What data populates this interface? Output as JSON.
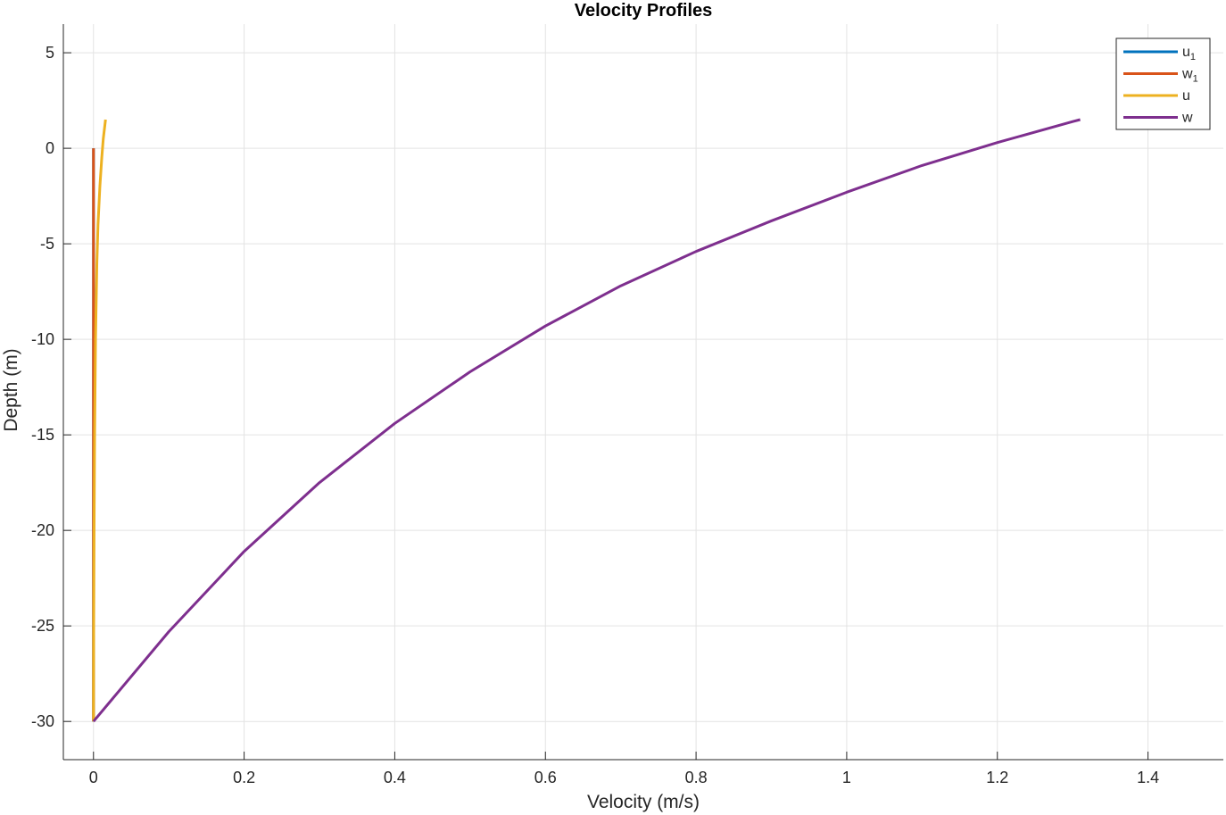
{
  "chart_data": {
    "type": "line",
    "title": "Velocity Profiles",
    "xlabel": "Velocity (m/s)",
    "ylabel": "Depth (m)",
    "xlim": [
      -0.04,
      1.5
    ],
    "ylim": [
      -32,
      6.5
    ],
    "xticks": [
      0,
      0.2,
      0.4,
      0.6,
      0.8,
      1,
      1.2,
      1.4
    ],
    "xtick_labels": [
      "0",
      "0.2",
      "0.4",
      "0.6",
      "0.8",
      "1",
      "1.2",
      "1.4"
    ],
    "yticks": [
      5,
      0,
      -5,
      -10,
      -15,
      -20,
      -25,
      -30
    ],
    "ytick_labels": [
      "5",
      "0",
      "-5",
      "-10",
      "-15",
      "-20",
      "-25",
      "-30"
    ],
    "grid": true,
    "legend_position": "top-right",
    "series": [
      {
        "name": "u",
        "name_sub": "1",
        "color": "#0072BD",
        "points": [
          [
            0,
            -30
          ],
          [
            0,
            -25
          ],
          [
            0,
            -20
          ],
          [
            0,
            -15
          ],
          [
            0,
            -10
          ],
          [
            0,
            -5
          ],
          [
            0,
            0
          ]
        ]
      },
      {
        "name": "w",
        "name_sub": "1",
        "color": "#D95319",
        "points": [
          [
            0,
            -30
          ],
          [
            0,
            -25
          ],
          [
            0,
            -20
          ],
          [
            0,
            -15
          ],
          [
            0,
            -10
          ],
          [
            0,
            -5
          ],
          [
            0,
            0
          ]
        ]
      },
      {
        "name": "u",
        "name_sub": "",
        "color": "#EDB120",
        "points": [
          [
            0,
            -30
          ],
          [
            0.0003,
            -25
          ],
          [
            0.0008,
            -20
          ],
          [
            0.0015,
            -15
          ],
          [
            0.0027,
            -10
          ],
          [
            0.0045,
            -6
          ],
          [
            0.006,
            -4
          ],
          [
            0.0085,
            -2
          ],
          [
            0.011,
            -0.5
          ],
          [
            0.013,
            0.5
          ],
          [
            0.016,
            1.5
          ]
        ]
      },
      {
        "name": "w",
        "name_sub": "",
        "color": "#7E2F8E",
        "points": [
          [
            0,
            -30
          ],
          [
            0.1,
            -25.3
          ],
          [
            0.2,
            -21.1
          ],
          [
            0.3,
            -17.5
          ],
          [
            0.4,
            -14.4
          ],
          [
            0.5,
            -11.7
          ],
          [
            0.6,
            -9.3
          ],
          [
            0.7,
            -7.2
          ],
          [
            0.8,
            -5.4
          ],
          [
            0.9,
            -3.8
          ],
          [
            1.0,
            -2.3
          ],
          [
            1.1,
            -0.9
          ],
          [
            1.2,
            0.3
          ],
          [
            1.3,
            1.4
          ],
          [
            1.31,
            1.5
          ]
        ]
      }
    ]
  }
}
